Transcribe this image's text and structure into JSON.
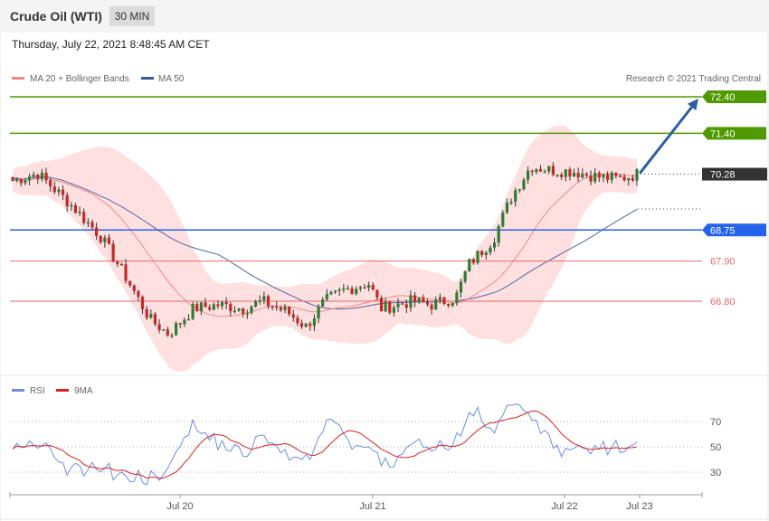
{
  "header": {
    "title": "Crude Oil (WTI)",
    "timeframe": "30 MIN"
  },
  "timestamp": "Thursday, July 22, 2021 8:48:45 AM CET",
  "legend": {
    "ma20_label": "MA 20 + Bollinger Bands",
    "ma50_label": "MA 50",
    "copyright": "Research © 2021 Trading Central",
    "rsi_label": "RSI",
    "rsi_ma_label": "9MA"
  },
  "colors": {
    "support": "#e46a6a",
    "resistance": "#4f9a00",
    "pivot": "#2563eb",
    "arrow": "#2f5f9e",
    "up_candle": "#2e7d32",
    "down_candle": "#c62828",
    "ma20": "#ef8a8a",
    "ma50": "#4f66a8",
    "bands": "#ffe0e0",
    "rsi": "#6a8fe0",
    "rsi_ma": "#e02020",
    "last_price_bg": "#333333"
  },
  "chart_data": [
    {
      "type": "candlestick",
      "title": "",
      "xlabel": "",
      "ylabel": "",
      "ylim": [
        65.2,
        72.9
      ],
      "x_ticks": [
        "Jul 20",
        "Jul 21",
        "Jul 22",
        "Jul 23"
      ],
      "last_price": "70.28",
      "levels": [
        {
          "value": 72.4,
          "label": "72.40",
          "role": "resistance"
        },
        {
          "value": 71.4,
          "label": "71.40",
          "role": "resistance"
        },
        {
          "value": 68.75,
          "label": "68.75",
          "role": "pivot"
        },
        {
          "value": 67.9,
          "label": "67.90",
          "role": "support"
        },
        {
          "value": 66.8,
          "label": "66.80",
          "role": "support"
        }
      ],
      "arrow": {
        "from": 70.28,
        "to": 72.4
      },
      "series": [
        {
          "name": "MA 20 + Bollinger Bands"
        },
        {
          "name": "MA 50"
        }
      ]
    },
    {
      "type": "line",
      "title": "",
      "ylim": [
        15,
        90
      ],
      "y_ticks": [
        30,
        50,
        70
      ],
      "series": [
        {
          "name": "RSI"
        },
        {
          "name": "9MA"
        }
      ]
    }
  ]
}
